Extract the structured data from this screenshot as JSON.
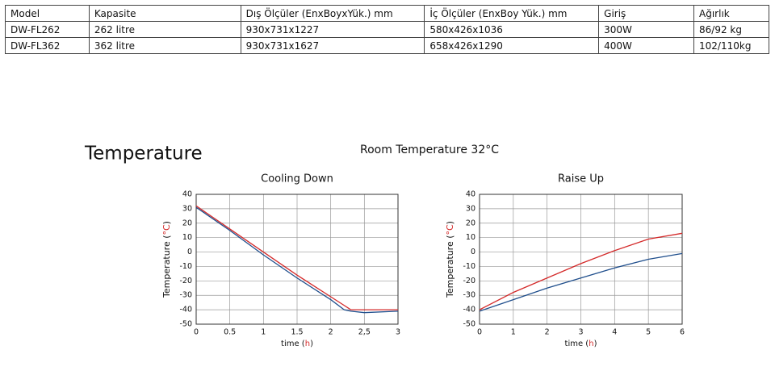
{
  "table": {
    "header": [
      "Model",
      "Kapasite",
      "Dış Ölçüler (EnxBoyxYük.) mm",
      "İç Ölçüler (EnxBoy Yük.) mm",
      "Giriş",
      "Ağırlık"
    ],
    "rows": [
      [
        "DW-FL262",
        "262 litre",
        "930x731x1227",
        "580x426x1036",
        "300W",
        "86/92 kg"
      ],
      [
        "DW-FL362",
        "362 litre",
        "930x731x1627",
        "658x426x1290",
        "400W",
        "102/110kg"
      ]
    ]
  },
  "heading": "Temperature",
  "subheading": "Room Temperature 32°C",
  "chart_data": [
    {
      "type": "line",
      "title": "Cooling Down",
      "ylabel": [
        "Temperature (",
        "°C",
        ")"
      ],
      "xlabel": [
        "time (",
        "h",
        ")"
      ],
      "x": [
        0,
        0.5,
        1,
        1.5,
        2,
        2.2,
        2.3,
        2.5,
        3
      ],
      "series": [
        {
          "color": "#d42a2a",
          "values": [
            32,
            16,
            0,
            -16,
            -31,
            -37,
            -40,
            -40,
            -40
          ]
        },
        {
          "color": "#1f4e8c",
          "values": [
            31,
            15,
            -2,
            -18,
            -33,
            -40,
            -41,
            -42,
            -41
          ]
        }
      ],
      "xlim": [
        0,
        3
      ],
      "xticks": [
        0,
        0.5,
        1,
        1.5,
        2,
        {
          "value": 2.5,
          "label": "2,5"
        },
        3
      ],
      "ylim": [
        -50,
        40
      ],
      "yticks": [
        40,
        30,
        20,
        10,
        0,
        -10,
        -20,
        -30,
        -40,
        -50
      ],
      "grid": true
    },
    {
      "type": "line",
      "title": "Raise Up",
      "ylabel": [
        "Temperature (",
        "°C",
        ")"
      ],
      "xlabel": [
        "time (",
        "h",
        ")"
      ],
      "x": [
        0,
        1,
        2,
        3,
        4,
        5,
        6
      ],
      "series": [
        {
          "color": "#d42a2a",
          "values": [
            -40,
            -28,
            -18,
            -8,
            1,
            9,
            13
          ]
        },
        {
          "color": "#1f4e8c",
          "values": [
            -41,
            -33,
            -25,
            -18,
            -11,
            -5,
            -1
          ]
        }
      ],
      "xlim": [
        0,
        6
      ],
      "xticks": [
        0,
        1,
        2,
        3,
        4,
        5,
        6
      ],
      "ylim": [
        -50,
        40
      ],
      "yticks": [
        40,
        30,
        20,
        10,
        0,
        -10,
        -20,
        -30,
        -40,
        -50
      ],
      "grid": true
    }
  ]
}
